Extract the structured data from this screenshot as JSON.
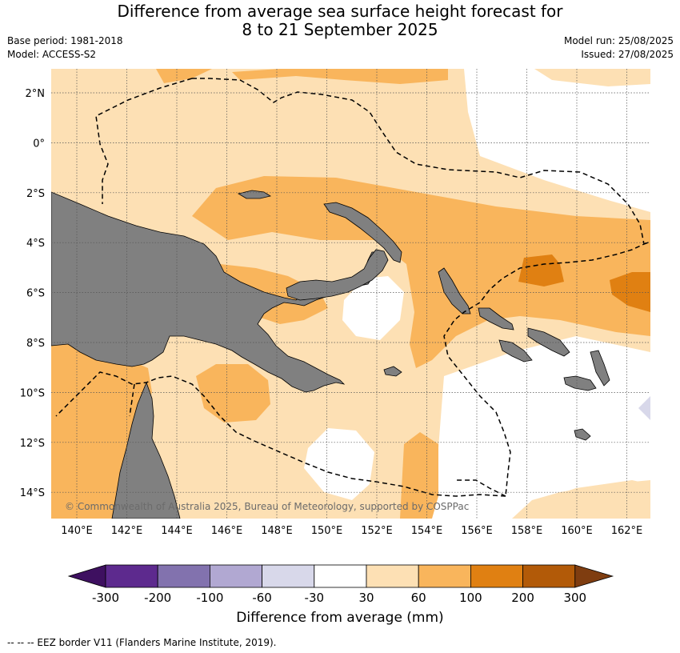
{
  "header": {
    "title_line1": "Difference from average sea surface height forecast for",
    "title_line2": "8 to 21 September 2025",
    "base_period": "Base period: 1981-2018",
    "model": "Model: ACCESS-S2",
    "model_run": "Model run: 25/08/2025",
    "issued": "Issued: 27/08/2025"
  },
  "map": {
    "lat_labels": [
      "2°N",
      "0°",
      "2°S",
      "4°S",
      "6°S",
      "8°S",
      "10°S",
      "12°S",
      "14°S"
    ],
    "lon_labels": [
      "140°E",
      "142°E",
      "144°E",
      "146°E",
      "148°E",
      "150°E",
      "152°E",
      "154°E",
      "156°E",
      "158°E",
      "160°E",
      "162°E"
    ],
    "copyright": "© Commonwealth of Australia 2025, Bureau of Meteorology, supported by COSPPac",
    "colors": {
      "land": "#808080",
      "band_30_60": "#fde0b4",
      "band_60_100": "#f9b55c",
      "band_100_200": "#e08012",
      "band_m60_m30": "#d8d8ea",
      "below_m30_above_30": "#ffffff"
    }
  },
  "colorbar": {
    "labels": [
      "-300",
      "-200",
      "-100",
      "-60",
      "-30",
      "30",
      "60",
      "100",
      "200",
      "300"
    ],
    "colors": [
      "#3e1060",
      "#5d2a8e",
      "#8272ae",
      "#b1a8d2",
      "#d8d8ea",
      "#ffffff",
      "#fde0b4",
      "#f9b55c",
      "#e08012",
      "#b25a08",
      "#7f3d10"
    ],
    "title": "Difference from average (mm)"
  },
  "footer": {
    "legend": "--  --  -- EEZ border V11 (Flanders Marine Institute, 2019)."
  }
}
